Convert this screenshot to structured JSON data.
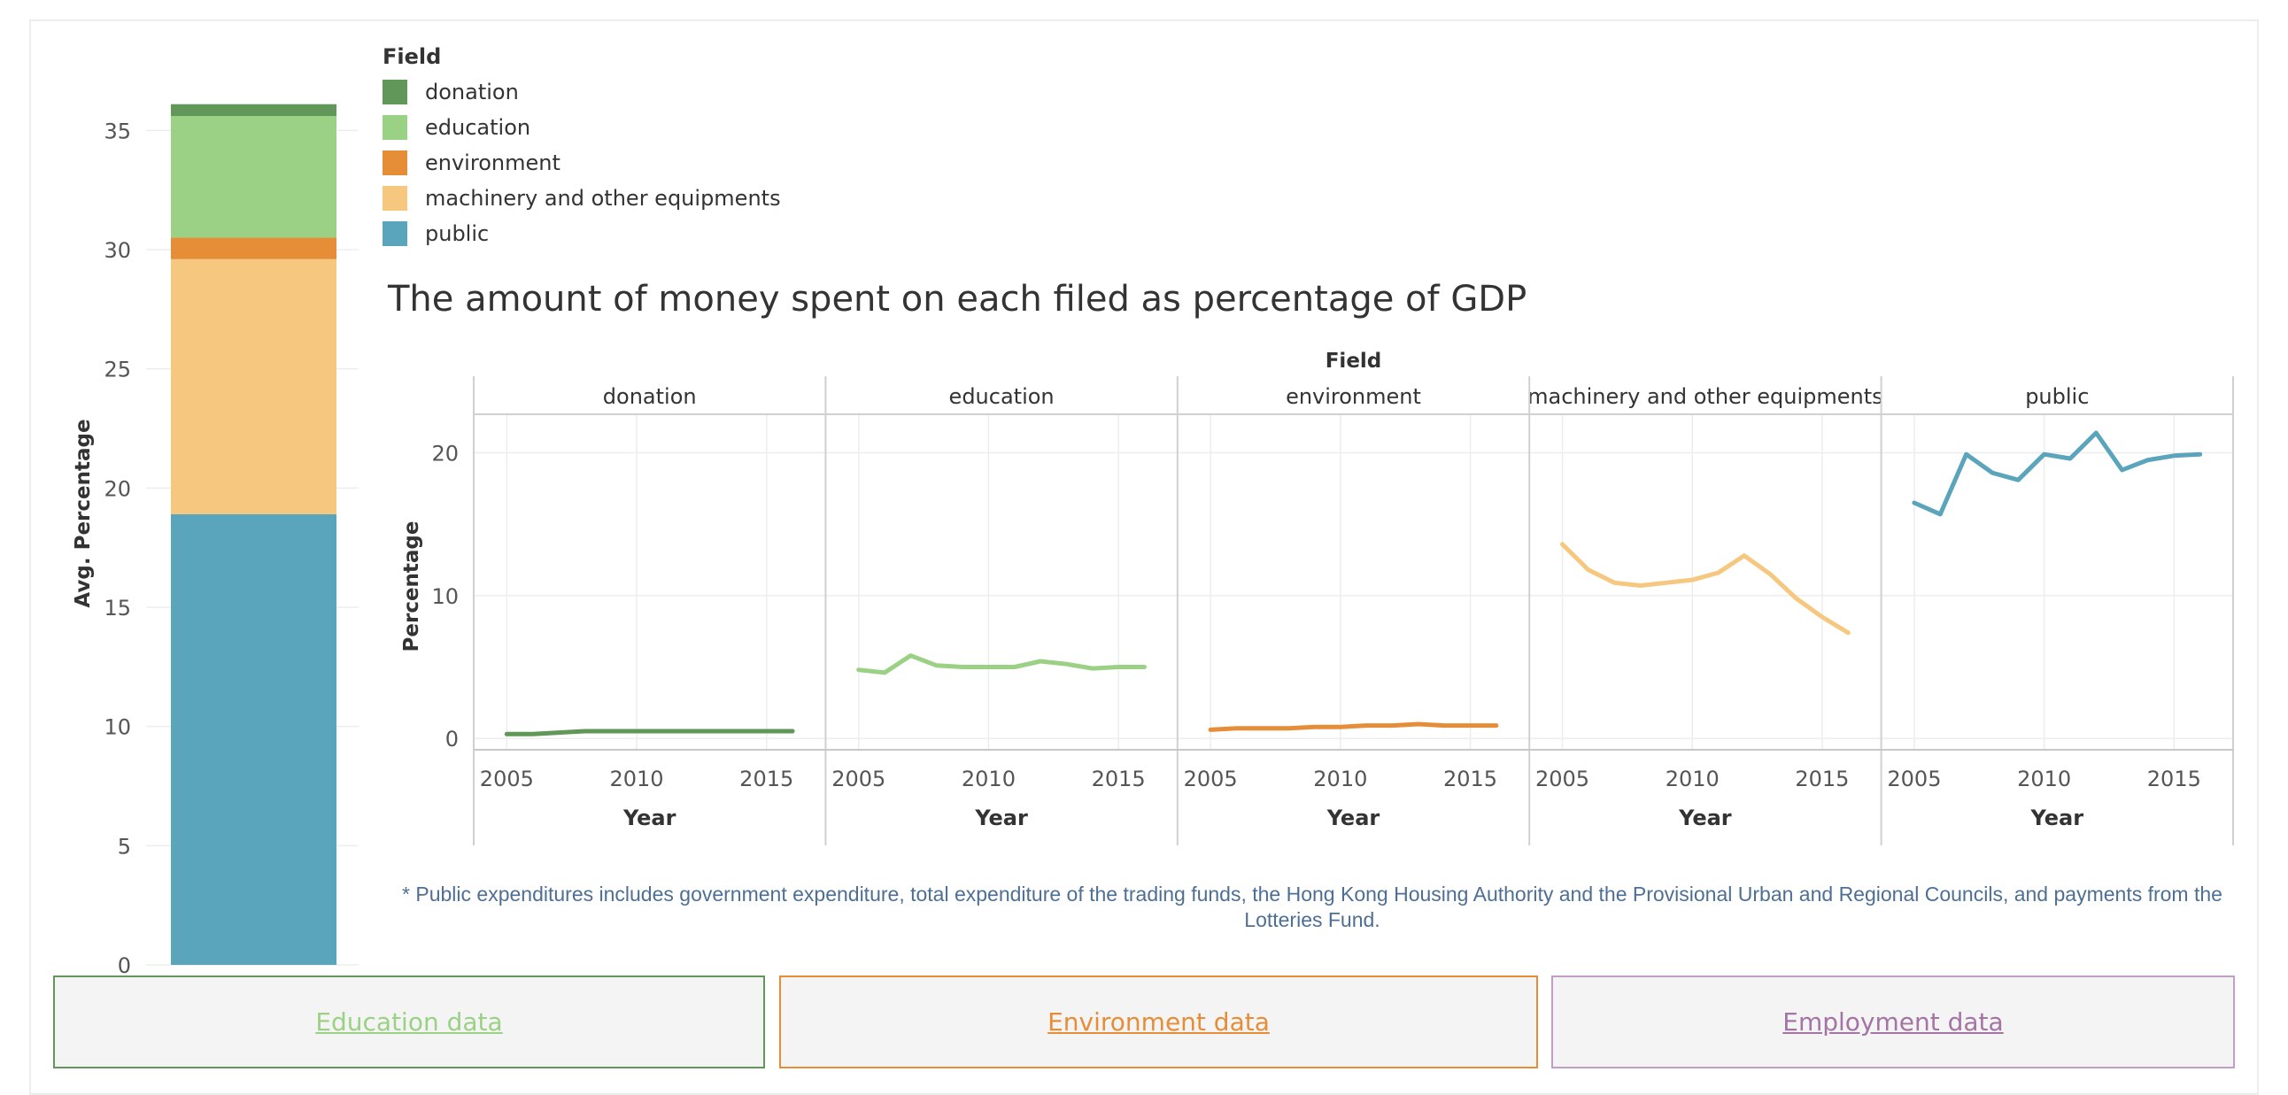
{
  "legend": {
    "title": "Field",
    "items": [
      {
        "label": "donation",
        "color": "#62975a"
      },
      {
        "label": "education",
        "color": "#9bd184"
      },
      {
        "label": "environment",
        "color": "#e68e37"
      },
      {
        "label": "machinery and other equipments",
        "color": "#f5c77f"
      },
      {
        "label": "public",
        "color": "#5aa5bb"
      }
    ]
  },
  "footnote": "* Public expenditures includes government expenditure, total expenditure of the trading funds, the Hong Kong Housing Authority and the Provisional Urban and Regional Councils, and payments from the Lotteries Fund.",
  "buttons": [
    {
      "label": "Education data",
      "color": "#9bd184",
      "border": "#62975a"
    },
    {
      "label": "Environment data",
      "color": "#e68e37",
      "border": "#e68e37"
    },
    {
      "label": "Employment data",
      "color": "#a474a4",
      "border": "#c39dc6"
    }
  ],
  "chart_data": [
    {
      "type": "bar",
      "stacked": true,
      "ylabel": "Avg. Percentage",
      "ylim": [
        0,
        37.5
      ],
      "yticks": [
        0,
        5,
        10,
        15,
        20,
        25,
        30,
        35
      ],
      "series": [
        {
          "name": "public",
          "value": 18.9,
          "color": "#5aa5bb"
        },
        {
          "name": "machinery and other equipments",
          "value": 10.7,
          "color": "#f5c77f"
        },
        {
          "name": "environment",
          "value": 0.9,
          "color": "#e68e37"
        },
        {
          "name": "education",
          "value": 5.1,
          "color": "#9bd184"
        },
        {
          "name": "donation",
          "value": 0.5,
          "color": "#62975a"
        }
      ]
    },
    {
      "type": "line",
      "title": "The amount of money spent on each filed as percentage of  GDP",
      "header": "Field",
      "xlabel": "Year",
      "ylabel": "Percentage",
      "xlim": [
        2004,
        2017
      ],
      "ylim": [
        -0.8,
        22.7
      ],
      "xticks": [
        2005,
        2010,
        2015
      ],
      "yticks": [
        0,
        10,
        20
      ],
      "x": [
        2005,
        2006,
        2007,
        2008,
        2009,
        2010,
        2011,
        2012,
        2013,
        2014,
        2015,
        2016
      ],
      "series": [
        {
          "name": "donation",
          "color": "#62975a",
          "values": [
            0.3,
            0.3,
            0.4,
            0.5,
            0.5,
            0.5,
            0.5,
            0.5,
            0.5,
            0.5,
            0.5,
            0.5
          ]
        },
        {
          "name": "education",
          "color": "#9bd184",
          "values": [
            4.8,
            4.6,
            5.8,
            5.1,
            5.0,
            5.0,
            5.0,
            5.4,
            5.2,
            4.9,
            5.0,
            5.0
          ]
        },
        {
          "name": "environment",
          "color": "#e68e37",
          "values": [
            0.6,
            0.7,
            0.7,
            0.7,
            0.8,
            0.8,
            0.9,
            0.9,
            1.0,
            0.9,
            0.9,
            0.9
          ]
        },
        {
          "name": "machinery and other equipments",
          "color": "#f5c77f",
          "values": [
            13.6,
            11.8,
            10.9,
            10.7,
            10.9,
            11.1,
            11.6,
            12.8,
            11.5,
            9.8,
            8.5,
            7.4
          ]
        },
        {
          "name": "public",
          "color": "#5aa5bb",
          "values": [
            16.5,
            15.7,
            19.9,
            18.6,
            18.1,
            19.9,
            19.6,
            21.4,
            18.8,
            19.5,
            19.8,
            19.9
          ]
        }
      ]
    }
  ]
}
